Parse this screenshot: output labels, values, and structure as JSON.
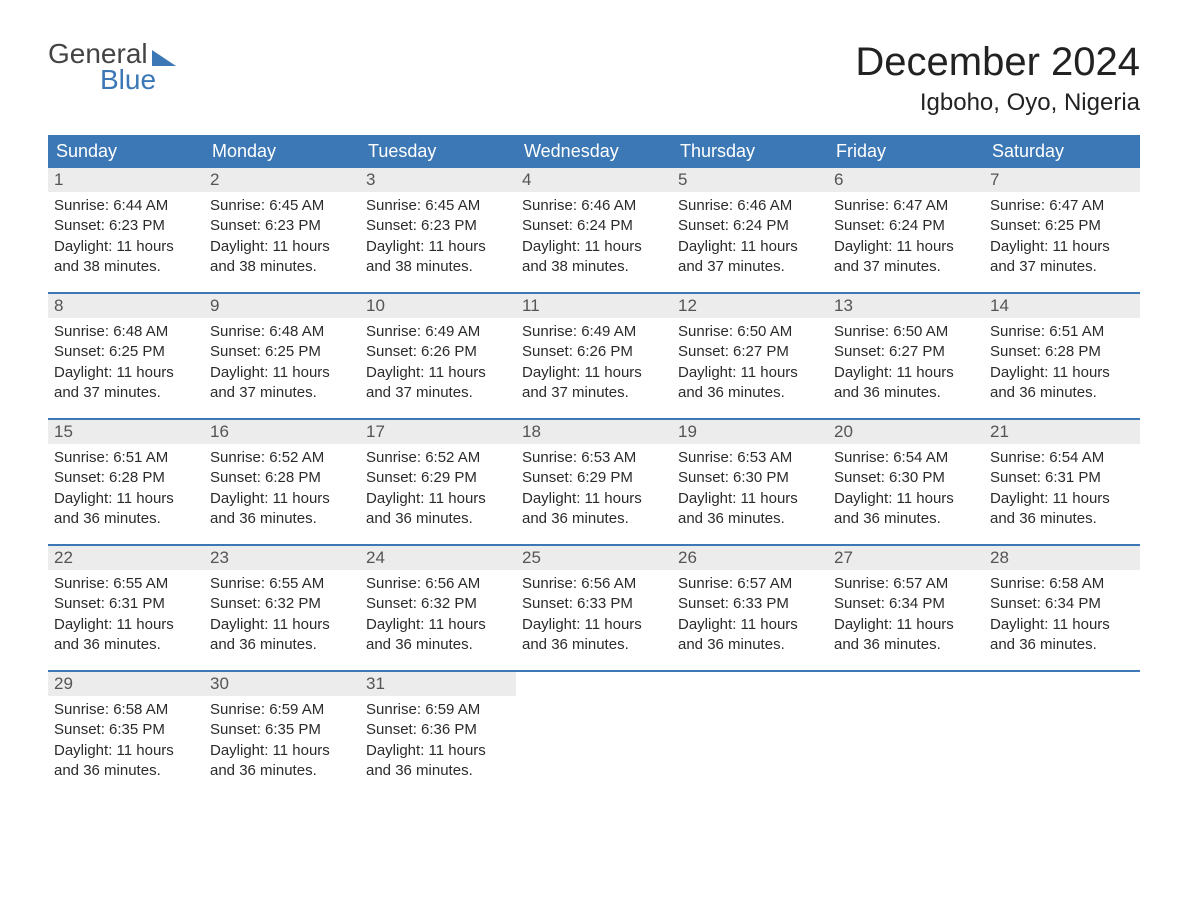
{
  "brand": {
    "top": "General",
    "bottom": "Blue"
  },
  "title": "December 2024",
  "location": "Igboho, Oyo, Nigeria",
  "colors": {
    "header_bg": "#3b78b5",
    "header_text": "#ffffff",
    "daynum_bg": "#ececec",
    "daynum_text": "#555555",
    "body_text": "#2b2b2b",
    "week_border": "#3b78b5",
    "page_bg": "#ffffff"
  },
  "fonts": {
    "title_size_pt": 30,
    "location_size_pt": 18,
    "dayheader_size_pt": 14,
    "daynum_size_pt": 13,
    "body_size_pt": 11
  },
  "layout": {
    "columns": 7,
    "weeks": 5,
    "start_day_index": 0
  },
  "day_headers": [
    "Sunday",
    "Monday",
    "Tuesday",
    "Wednesday",
    "Thursday",
    "Friday",
    "Saturday"
  ],
  "days": [
    {
      "n": 1,
      "sunrise": "6:44 AM",
      "sunset": "6:23 PM",
      "daylight": "11 hours and 38 minutes."
    },
    {
      "n": 2,
      "sunrise": "6:45 AM",
      "sunset": "6:23 PM",
      "daylight": "11 hours and 38 minutes."
    },
    {
      "n": 3,
      "sunrise": "6:45 AM",
      "sunset": "6:23 PM",
      "daylight": "11 hours and 38 minutes."
    },
    {
      "n": 4,
      "sunrise": "6:46 AM",
      "sunset": "6:24 PM",
      "daylight": "11 hours and 38 minutes."
    },
    {
      "n": 5,
      "sunrise": "6:46 AM",
      "sunset": "6:24 PM",
      "daylight": "11 hours and 37 minutes."
    },
    {
      "n": 6,
      "sunrise": "6:47 AM",
      "sunset": "6:24 PM",
      "daylight": "11 hours and 37 minutes."
    },
    {
      "n": 7,
      "sunrise": "6:47 AM",
      "sunset": "6:25 PM",
      "daylight": "11 hours and 37 minutes."
    },
    {
      "n": 8,
      "sunrise": "6:48 AM",
      "sunset": "6:25 PM",
      "daylight": "11 hours and 37 minutes."
    },
    {
      "n": 9,
      "sunrise": "6:48 AM",
      "sunset": "6:25 PM",
      "daylight": "11 hours and 37 minutes."
    },
    {
      "n": 10,
      "sunrise": "6:49 AM",
      "sunset": "6:26 PM",
      "daylight": "11 hours and 37 minutes."
    },
    {
      "n": 11,
      "sunrise": "6:49 AM",
      "sunset": "6:26 PM",
      "daylight": "11 hours and 37 minutes."
    },
    {
      "n": 12,
      "sunrise": "6:50 AM",
      "sunset": "6:27 PM",
      "daylight": "11 hours and 36 minutes."
    },
    {
      "n": 13,
      "sunrise": "6:50 AM",
      "sunset": "6:27 PM",
      "daylight": "11 hours and 36 minutes."
    },
    {
      "n": 14,
      "sunrise": "6:51 AM",
      "sunset": "6:28 PM",
      "daylight": "11 hours and 36 minutes."
    },
    {
      "n": 15,
      "sunrise": "6:51 AM",
      "sunset": "6:28 PM",
      "daylight": "11 hours and 36 minutes."
    },
    {
      "n": 16,
      "sunrise": "6:52 AM",
      "sunset": "6:28 PM",
      "daylight": "11 hours and 36 minutes."
    },
    {
      "n": 17,
      "sunrise": "6:52 AM",
      "sunset": "6:29 PM",
      "daylight": "11 hours and 36 minutes."
    },
    {
      "n": 18,
      "sunrise": "6:53 AM",
      "sunset": "6:29 PM",
      "daylight": "11 hours and 36 minutes."
    },
    {
      "n": 19,
      "sunrise": "6:53 AM",
      "sunset": "6:30 PM",
      "daylight": "11 hours and 36 minutes."
    },
    {
      "n": 20,
      "sunrise": "6:54 AM",
      "sunset": "6:30 PM",
      "daylight": "11 hours and 36 minutes."
    },
    {
      "n": 21,
      "sunrise": "6:54 AM",
      "sunset": "6:31 PM",
      "daylight": "11 hours and 36 minutes."
    },
    {
      "n": 22,
      "sunrise": "6:55 AM",
      "sunset": "6:31 PM",
      "daylight": "11 hours and 36 minutes."
    },
    {
      "n": 23,
      "sunrise": "6:55 AM",
      "sunset": "6:32 PM",
      "daylight": "11 hours and 36 minutes."
    },
    {
      "n": 24,
      "sunrise": "6:56 AM",
      "sunset": "6:32 PM",
      "daylight": "11 hours and 36 minutes."
    },
    {
      "n": 25,
      "sunrise": "6:56 AM",
      "sunset": "6:33 PM",
      "daylight": "11 hours and 36 minutes."
    },
    {
      "n": 26,
      "sunrise": "6:57 AM",
      "sunset": "6:33 PM",
      "daylight": "11 hours and 36 minutes."
    },
    {
      "n": 27,
      "sunrise": "6:57 AM",
      "sunset": "6:34 PM",
      "daylight": "11 hours and 36 minutes."
    },
    {
      "n": 28,
      "sunrise": "6:58 AM",
      "sunset": "6:34 PM",
      "daylight": "11 hours and 36 minutes."
    },
    {
      "n": 29,
      "sunrise": "6:58 AM",
      "sunset": "6:35 PM",
      "daylight": "11 hours and 36 minutes."
    },
    {
      "n": 30,
      "sunrise": "6:59 AM",
      "sunset": "6:35 PM",
      "daylight": "11 hours and 36 minutes."
    },
    {
      "n": 31,
      "sunrise": "6:59 AM",
      "sunset": "6:36 PM",
      "daylight": "11 hours and 36 minutes."
    }
  ],
  "labels": {
    "sunrise_prefix": "Sunrise: ",
    "sunset_prefix": "Sunset: ",
    "daylight_prefix": "Daylight: "
  }
}
